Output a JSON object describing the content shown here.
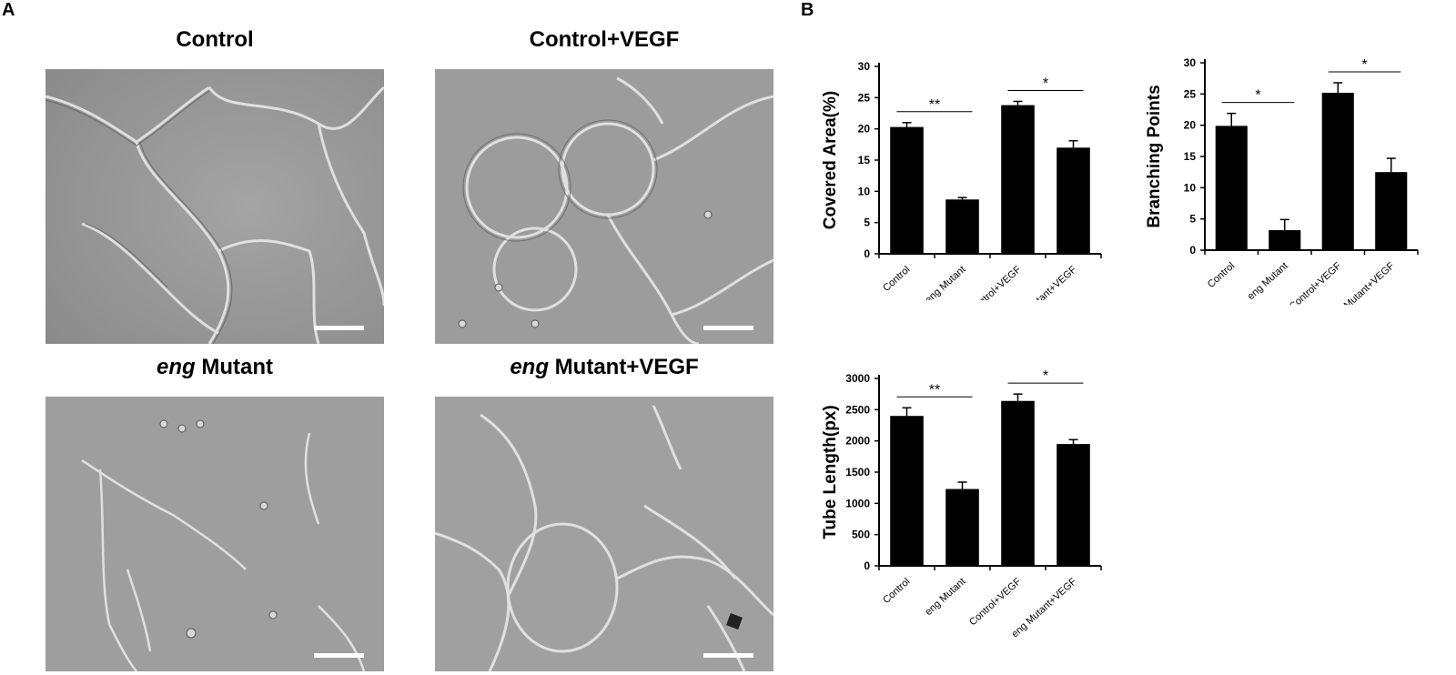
{
  "panel_labels": {
    "a": "A",
    "b": "B"
  },
  "micrographs": [
    {
      "title_italic": "",
      "title_rest": "Control"
    },
    {
      "title_italic": "",
      "title_rest": "Control+VEGF"
    },
    {
      "title_italic": "eng",
      "title_rest": " Mutant"
    },
    {
      "title_italic": "eng",
      "title_rest": " Mutant+VEGF"
    }
  ],
  "colors": {
    "bar": "#000000",
    "image_gray": "#9a9a9a",
    "cell_line": "#e8e8e8"
  },
  "chart_data": [
    {
      "type": "bar",
      "categories": [
        "Control",
        "eng Mutant",
        "Control+VEGF",
        "eng Mutant+VEGF"
      ],
      "values": [
        20.3,
        8.7,
        23.8,
        17.0
      ],
      "errors": [
        0.7,
        0.3,
        0.6,
        1.1
      ],
      "ylabel": "Covered Area(%)",
      "ylim": [
        0,
        30
      ],
      "yticks": [
        0,
        5,
        10,
        15,
        20,
        25,
        30
      ],
      "significance": [
        {
          "from": 0,
          "to": 1,
          "label": "**"
        },
        {
          "from": 2,
          "to": 3,
          "label": "*"
        }
      ]
    },
    {
      "type": "bar",
      "categories": [
        "Control",
        "eng Mutant",
        "Control+VEGF",
        "eng Mutant+VEGF"
      ],
      "values": [
        19.9,
        3.2,
        25.2,
        12.5
      ],
      "errors": [
        2.0,
        1.7,
        1.6,
        2.2
      ],
      "ylabel": "Branching Points",
      "ylim": [
        0,
        30
      ],
      "yticks": [
        0,
        5,
        10,
        15,
        20,
        25,
        30
      ],
      "significance": [
        {
          "from": 0,
          "to": 1,
          "label": "*"
        },
        {
          "from": 2,
          "to": 3,
          "label": "*"
        }
      ]
    },
    {
      "type": "bar",
      "categories": [
        "Control",
        "eng Mutant",
        "Control+VEGF",
        "eng Mutant+VEGF"
      ],
      "values": [
        2400,
        1230,
        2640,
        1950
      ],
      "errors": [
        130,
        110,
        110,
        70
      ],
      "ylabel": "Tube Length(px)",
      "ylim": [
        0,
        3000
      ],
      "yticks": [
        0,
        500,
        1000,
        1500,
        2000,
        2500,
        3000
      ],
      "significance": [
        {
          "from": 0,
          "to": 1,
          "label": "**"
        },
        {
          "from": 2,
          "to": 3,
          "label": "*"
        }
      ]
    }
  ]
}
